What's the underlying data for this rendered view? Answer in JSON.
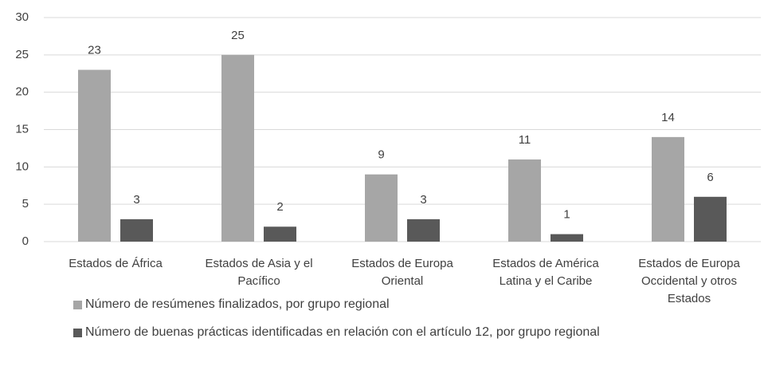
{
  "chart_data": {
    "type": "bar",
    "categories": [
      "Estados de África",
      "Estados de Asia y el Pacífico",
      "Estados de Europa Oriental",
      "Estados de América Latina y el Caribe",
      "Estados de Europa Occidental y otros Estados"
    ],
    "series": [
      {
        "name": "Número de resúmenes finalizados, por grupo regional",
        "color": "#a6a6a6",
        "values": [
          23,
          25,
          9,
          11,
          14
        ]
      },
      {
        "name": "Número de buenas prácticas identificadas en relación con el artículo 12, por grupo regional",
        "color": "#595959",
        "values": [
          3,
          2,
          3,
          1,
          6
        ]
      }
    ],
    "ylim": [
      0,
      30
    ],
    "yticks": [
      0,
      5,
      10,
      15,
      20,
      25,
      30
    ],
    "grid": true,
    "legend": "bottom"
  }
}
